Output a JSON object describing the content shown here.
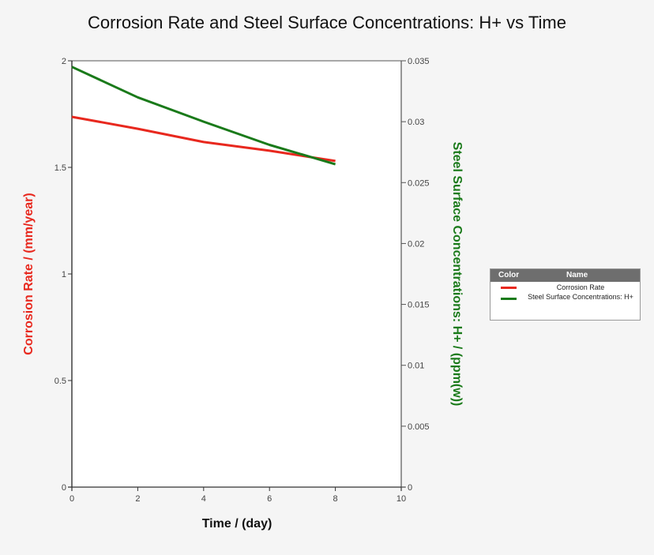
{
  "chart_data": {
    "type": "line",
    "title": "Corrosion Rate and Steel Surface Concentrations: H+ vs Time",
    "xlabel": "Time / (day)",
    "ylabel": "Corrosion Rate / (mm/year)",
    "y2label": "Steel Surface Concentrations: H+ / (ppm(w))",
    "xlim": [
      0,
      10
    ],
    "ylim": [
      0,
      2
    ],
    "y2lim": [
      0,
      0.035
    ],
    "xticks": [
      "0",
      "2",
      "4",
      "6",
      "8",
      "10"
    ],
    "yticks": [
      "0",
      "0.5",
      "1",
      "1.5",
      "2"
    ],
    "y2ticks": [
      "0",
      "0.005",
      "0.01",
      "0.015",
      "0.02",
      "0.025",
      "0.03",
      "0.035"
    ],
    "grid": false,
    "legend_position": "right",
    "x": [
      0,
      2,
      4,
      6,
      8
    ],
    "series": [
      {
        "name": "Corrosion Rate",
        "axis": "left",
        "color": "#e8281e",
        "values": [
          1.737,
          1.681,
          1.619,
          1.578,
          1.53
        ]
      },
      {
        "name": "Steel Surface Concentrations: H+",
        "axis": "right",
        "color": "#1a7a1a",
        "values": [
          0.0345,
          0.032,
          0.03,
          0.0281,
          0.0265
        ]
      }
    ]
  },
  "legend": {
    "header_color": "Color",
    "header_name": "Name",
    "items": [
      {
        "label": "Corrosion Rate",
        "color": "#e8281e"
      },
      {
        "label": "Steel Surface Concentrations: H+",
        "color": "#1a7a1a"
      }
    ]
  }
}
